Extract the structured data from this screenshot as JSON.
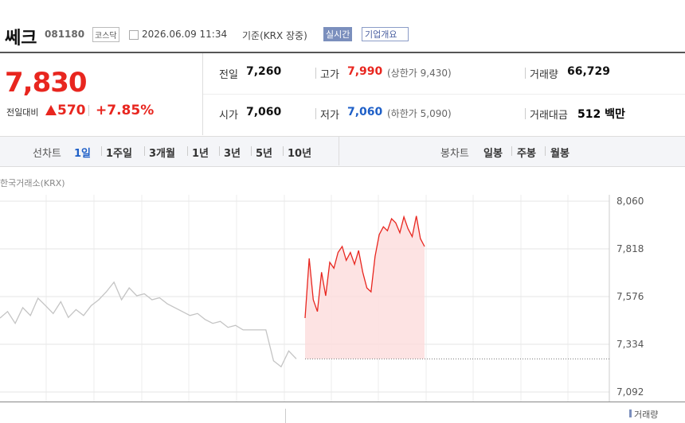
{
  "header": {
    "name": "쎄크",
    "code": "081180",
    "market": "코스닥",
    "datetime": "2026.06.09 11:34",
    "basis": "기준(KRX 장중)",
    "realtime": "실시간",
    "company_info": "기업개요"
  },
  "quote": {
    "price": "7,830",
    "change_label": "전일대비",
    "change": "570",
    "change_rate": "+7.85%"
  },
  "stats": [
    [
      {
        "label": "전일",
        "value": "7,260"
      },
      {
        "label": "고가",
        "value": "7,990",
        "note": "(상한가 9,430)"
      },
      {
        "label": "거래량",
        "value": "66,729"
      }
    ],
    [
      {
        "label": "시가",
        "value": "7,060"
      },
      {
        "label": "저가",
        "value": "7,060",
        "note": "(하한가 5,090)"
      },
      {
        "label": "거래대금",
        "value": "512 백만"
      }
    ]
  ],
  "tabs": {
    "line_chart": "선차트",
    "line_periods": [
      "1일",
      "1주일",
      "3개월",
      "1년",
      "3년",
      "5년",
      "10년"
    ],
    "candle_chart": "봉차트",
    "candle_periods": [
      "일봉",
      "주봉",
      "월봉"
    ]
  },
  "chart_data": {
    "type": "line",
    "source": "한국거래소(KRX)",
    "volume_label": "거래량",
    "ylim": [
      7092,
      8060
    ],
    "yticks": [
      {
        "value": 8060,
        "label": "8,060"
      },
      {
        "value": 7818,
        "label": "7,818"
      },
      {
        "value": 7576,
        "label": "7,576"
      },
      {
        "value": 7334,
        "label": "7,334"
      },
      {
        "value": 7092,
        "label": "7,092"
      }
    ],
    "reference_line": 7260,
    "grid": true,
    "series": [
      {
        "color": "#c4c4c4",
        "values": [
          7467,
          7500,
          7440,
          7520,
          7480,
          7568,
          7530,
          7490,
          7550,
          7470,
          7510,
          7480,
          7530,
          7560,
          7600,
          7649,
          7560,
          7620,
          7580,
          7590,
          7560,
          7570,
          7540,
          7520,
          7500,
          7480,
          7490,
          7460,
          7440,
          7450,
          7420,
          7430,
          7407,
          7407,
          7407,
          7407,
          7250,
          7220,
          7300,
          7260
        ]
      },
      {
        "color": "#e8261f",
        "fill": "#fcdcdc",
        "values": [
          7467,
          7770,
          7560,
          7500,
          7700,
          7580,
          7750,
          7720,
          7800,
          7830,
          7760,
          7800,
          7740,
          7810,
          7700,
          7620,
          7600,
          7780,
          7890,
          7930,
          7910,
          7971,
          7950,
          7900,
          7980,
          7920,
          7880,
          7985,
          7870,
          7830
        ]
      }
    ]
  }
}
